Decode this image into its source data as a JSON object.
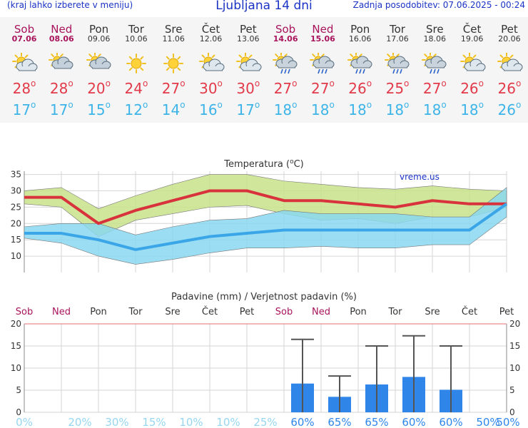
{
  "header": {
    "note": "(kraj lahko izberete v meniju)",
    "title": "Ljubljana 14 dni",
    "updated": "Zadnja posodobitev: 07.06.2025 - 00:24"
  },
  "days": [
    {
      "name": "Sob",
      "date": "07.06",
      "weekend": true,
      "icon": "sun-cloud-icon",
      "max": "28",
      "min": "17"
    },
    {
      "name": "Ned",
      "date": "08.06",
      "weekend": true,
      "icon": "cloudy-icon",
      "max": "28",
      "min": "17"
    },
    {
      "name": "Pon",
      "date": "09.06",
      "weekend": false,
      "icon": "cloudy-icon",
      "max": "20",
      "min": "15"
    },
    {
      "name": "Tor",
      "date": "10.06",
      "weekend": false,
      "icon": "sun-icon",
      "max": "24",
      "min": "12"
    },
    {
      "name": "Sre",
      "date": "11.06",
      "weekend": false,
      "icon": "sun-icon",
      "max": "27",
      "min": "14"
    },
    {
      "name": "Čet",
      "date": "12.06",
      "weekend": false,
      "icon": "sun-cloud-icon",
      "max": "30",
      "min": "16"
    },
    {
      "name": "Pet",
      "date": "13.06",
      "weekend": false,
      "icon": "sun-cloud-icon",
      "max": "30",
      "min": "17"
    },
    {
      "name": "Sob",
      "date": "14.06",
      "weekend": true,
      "icon": "sun-rain-icon",
      "max": "27",
      "min": "18"
    },
    {
      "name": "Ned",
      "date": "15.06",
      "weekend": true,
      "icon": "sun-rain-icon",
      "max": "27",
      "min": "18"
    },
    {
      "name": "Pon",
      "date": "16.06",
      "weekend": false,
      "icon": "sun-rain-icon",
      "max": "26",
      "min": "18"
    },
    {
      "name": "Tor",
      "date": "17.06",
      "weekend": false,
      "icon": "sun-rain-icon",
      "max": "25",
      "min": "18"
    },
    {
      "name": "Sre",
      "date": "18.06",
      "weekend": false,
      "icon": "sun-rain-icon",
      "max": "27",
      "min": "18"
    },
    {
      "name": "Čet",
      "date": "19.06",
      "weekend": false,
      "icon": "sun-cloud-icon",
      "max": "26",
      "min": "18"
    },
    {
      "name": "Pet",
      "date": "20.06",
      "weekend": false,
      "icon": "sun-cloud-icon",
      "max": "26",
      "min": "26"
    }
  ],
  "chart_data": [
    {
      "type": "line",
      "title": "Temperatura (°C)",
      "watermark": "vreme.us",
      "ylim": [
        5,
        36
      ],
      "yticks": [
        10,
        15,
        20,
        25,
        30,
        35
      ],
      "grid": true,
      "x": [
        0,
        1,
        2,
        3,
        4,
        5,
        6,
        7,
        8,
        9,
        10,
        11,
        12,
        13
      ],
      "series": [
        {
          "values": [
            28,
            28,
            20,
            24,
            27,
            30,
            30,
            27,
            27,
            26,
            25,
            27,
            26,
            26
          ],
          "color": "#d8323c"
        },
        {
          "values": [
            17,
            17,
            15,
            12,
            14,
            16,
            17,
            18,
            18,
            18,
            18,
            18,
            18,
            26
          ],
          "color": "#3aa6e8"
        }
      ],
      "bands": [
        {
          "upper": [
            30,
            31,
            24.5,
            28.5,
            32,
            35,
            35,
            33,
            32,
            31,
            30.5,
            31.5,
            30.5,
            30
          ],
          "lower": [
            26,
            25,
            16,
            21,
            23,
            25,
            25.5,
            23,
            21,
            21.5,
            20,
            22,
            22,
            25
          ],
          "color": "#c8e28a"
        },
        {
          "upper": [
            19,
            20,
            20,
            16.5,
            19,
            21,
            21.5,
            24,
            23,
            23,
            23,
            22,
            22,
            31
          ],
          "lower": [
            15.5,
            14,
            10,
            7.5,
            9,
            11,
            12.5,
            12.5,
            13,
            12.5,
            12.5,
            13.5,
            13.5,
            22
          ],
          "color": "#8ad7f0"
        }
      ]
    },
    {
      "type": "bar",
      "title": "Padavine (mm) / Verjetnost padavin (%)",
      "categories": [
        "Sob",
        "Ned",
        "Pon",
        "Tor",
        "Sre",
        "Čet",
        "Pet",
        "Sob",
        "Ned",
        "Pon",
        "Tor",
        "Sre",
        "Čet",
        "Pet"
      ],
      "weekend": [
        true,
        true,
        false,
        false,
        false,
        false,
        false,
        true,
        true,
        false,
        false,
        false,
        false,
        false
      ],
      "values": [
        0,
        0,
        0,
        0,
        0,
        0,
        0,
        6.5,
        3.5,
        6.3,
        8.0,
        5.1,
        0,
        0
      ],
      "error_max": [
        0,
        0,
        0,
        0,
        0,
        0,
        0,
        16.5,
        8.2,
        15.0,
        17.3,
        15.0,
        0,
        0
      ],
      "probability": [
        "0%",
        "20%",
        "30%",
        "15%",
        "10%",
        "10%",
        "25%",
        "60%",
        "65%",
        "65%",
        "60%",
        "60%",
        "50%",
        "50%"
      ],
      "ylim": [
        0,
        20
      ],
      "yticks": [
        0,
        5,
        10,
        15,
        20
      ],
      "grid": true,
      "bar_color": "#2f86e8"
    }
  ]
}
